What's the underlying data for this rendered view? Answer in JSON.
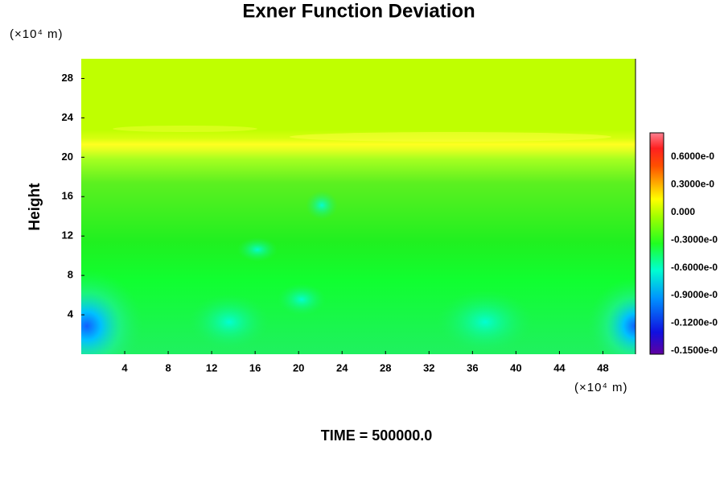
{
  "chart_data": {
    "type": "contour",
    "title": "Exner Function Deviation",
    "ylabel": "Height",
    "y_unit_label": "(×10⁴ m)",
    "x_unit_label": "(×10⁴ m)",
    "time_label": "TIME = 500000.0",
    "xlim": [
      0,
      51
    ],
    "xticks": [
      4,
      8,
      12,
      16,
      20,
      24,
      28,
      32,
      36,
      40,
      44,
      48
    ],
    "ylim": [
      0,
      30
    ],
    "yticks": [
      4,
      8,
      12,
      16,
      20,
      24,
      28
    ],
    "colorbar_labels": [
      "0.6000e-0",
      "0.3000e-0",
      "0.000",
      "-0.3000e-0",
      "-0.6000e-0",
      "-0.9000e-0",
      "-0.1200e-0",
      "-0.1500e-0"
    ]
  }
}
